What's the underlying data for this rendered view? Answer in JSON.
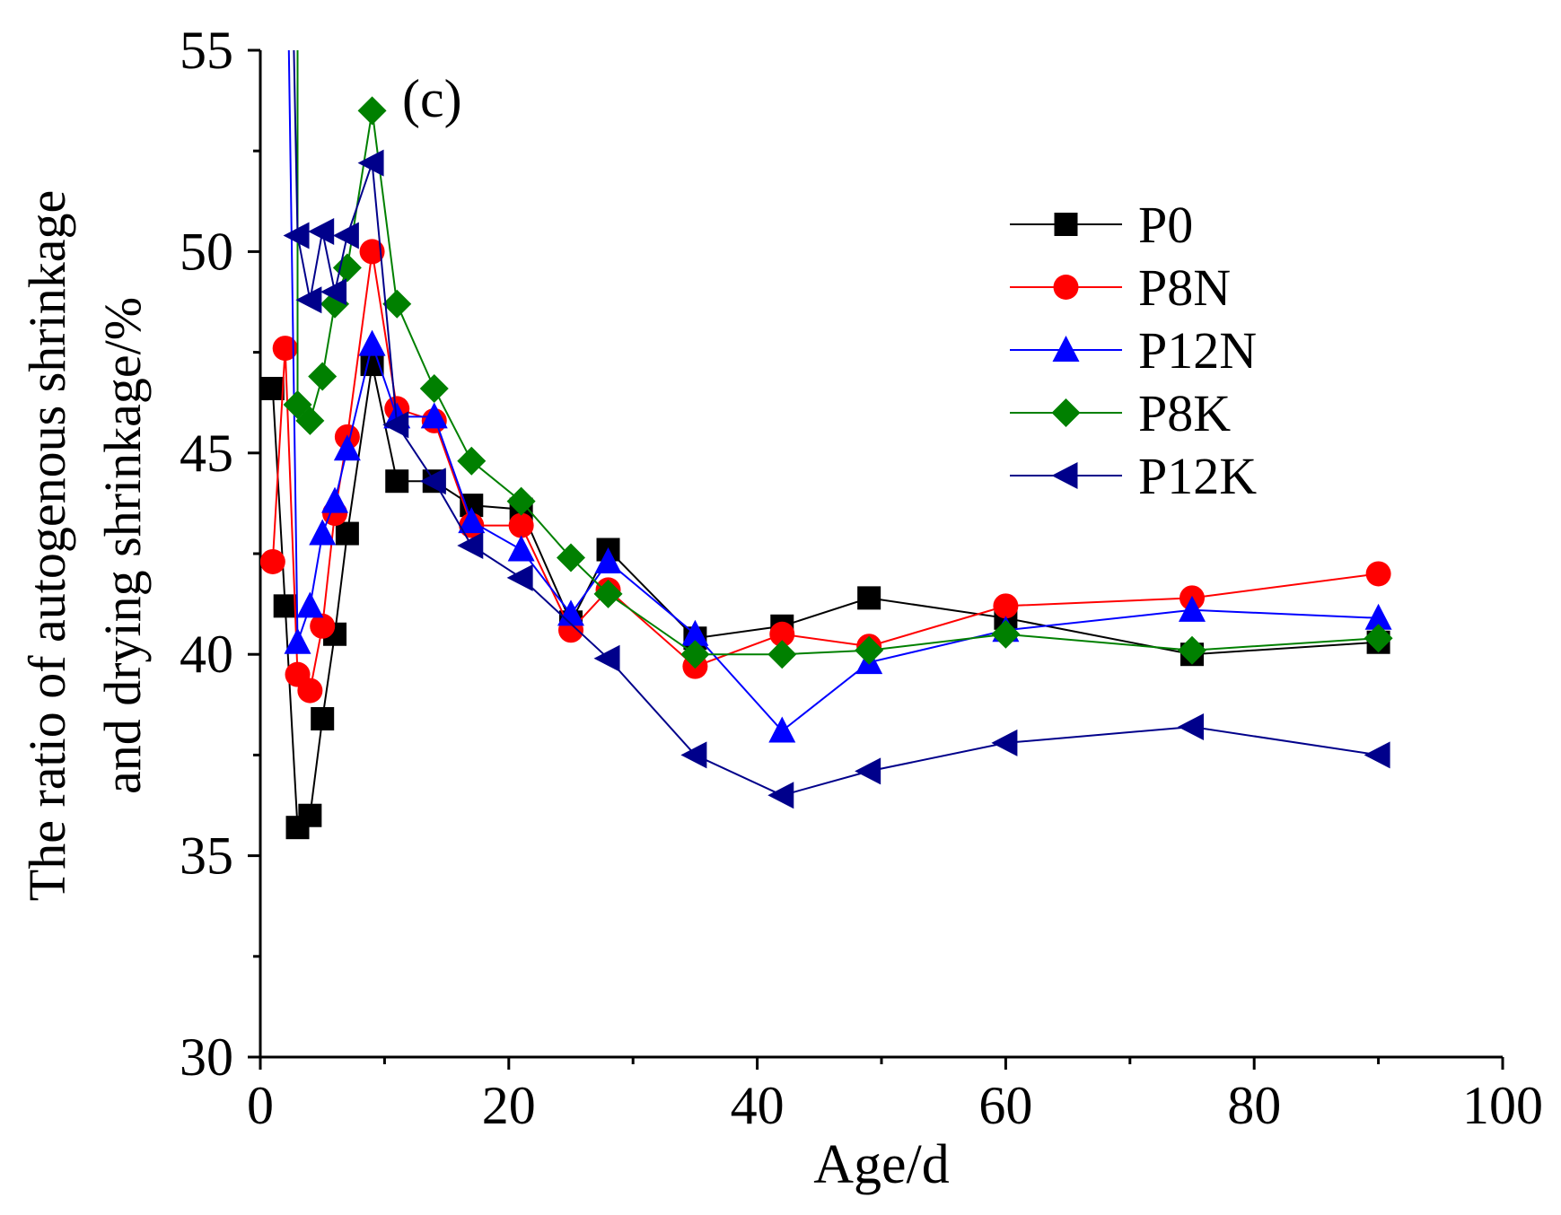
{
  "chart_data": {
    "type": "line",
    "panel_label": "(c)",
    "xlabel": "Age/d",
    "ylabel": [
      "The ratio of autogenous shrinkage",
      "and drying shrinkage/%"
    ],
    "xlim": [
      0,
      100
    ],
    "ylim": [
      30,
      55
    ],
    "x_ticks": [
      0,
      20,
      40,
      60,
      80,
      100
    ],
    "y_ticks": [
      30,
      35,
      40,
      45,
      50,
      55
    ],
    "x_tick_labels": [
      "0",
      "20",
      "40",
      "60",
      "80",
      "100"
    ],
    "y_tick_labels": [
      "30",
      "35",
      "40",
      "45",
      "50",
      "55"
    ],
    "grid": false,
    "legend_position": "top-right",
    "series": [
      {
        "name": "P0",
        "color": "#000000",
        "marker": "square",
        "x": [
          1,
          2,
          3,
          4,
          5,
          6,
          7,
          9,
          11,
          14,
          17,
          21,
          25,
          28,
          35,
          42,
          49,
          60,
          75,
          90
        ],
        "y": [
          46.6,
          41.2,
          35.7,
          36.0,
          38.4,
          40.5,
          43.0,
          47.2,
          44.3,
          44.3,
          43.7,
          43.6,
          40.8,
          42.6,
          40.4,
          40.7,
          41.4,
          40.9,
          40.0,
          40.3
        ]
      },
      {
        "name": "P8N",
        "color": "#ff0000",
        "marker": "circle",
        "x": [
          1,
          2,
          3,
          4,
          5,
          6,
          7,
          9,
          11,
          14,
          17,
          21,
          25,
          28,
          35,
          42,
          49,
          60,
          75,
          90
        ],
        "y": [
          42.3,
          47.6,
          39.5,
          39.1,
          40.7,
          43.5,
          45.4,
          50.0,
          46.1,
          45.8,
          43.2,
          43.2,
          40.6,
          41.6,
          39.7,
          40.5,
          40.2,
          41.2,
          41.4,
          42.0
        ]
      },
      {
        "name": "P12N",
        "color": "#0000ff",
        "marker": "triangle-up",
        "x": [
          2.3,
          3,
          4,
          5,
          6,
          7,
          9,
          11,
          14,
          17,
          21,
          25,
          28,
          35,
          42,
          49,
          60,
          75,
          90
        ],
        "y": [
          55,
          40.3,
          41.2,
          43.0,
          43.8,
          45.1,
          47.7,
          45.9,
          45.9,
          43.3,
          42.6,
          41.0,
          42.3,
          40.5,
          38.1,
          39.8,
          40.6,
          41.1,
          40.9
        ]
      },
      {
        "name": "P8K",
        "color": "#008000",
        "marker": "diamond",
        "x": [
          3,
          3,
          4,
          5,
          6,
          7,
          9,
          11,
          14,
          17,
          21,
          25,
          28,
          35,
          42,
          49,
          60,
          75,
          90
        ],
        "y": [
          55,
          46.2,
          45.8,
          46.9,
          48.7,
          49.6,
          53.5,
          48.7,
          46.6,
          44.8,
          43.8,
          42.4,
          41.5,
          40.0,
          40.0,
          40.1,
          40.5,
          40.1,
          40.4
        ]
      },
      {
        "name": "P12K",
        "color": "#00008b",
        "marker": "triangle-left",
        "x": [
          2.7,
          3,
          4,
          5,
          6,
          7,
          9,
          11,
          14,
          17,
          21,
          28,
          35,
          42,
          49,
          60,
          75,
          90
        ],
        "y": [
          55,
          50.4,
          48.8,
          50.5,
          49.0,
          50.4,
          52.2,
          45.7,
          44.3,
          42.7,
          41.9,
          39.9,
          37.5,
          36.5,
          37.1,
          37.8,
          38.2,
          37.5
        ]
      }
    ]
  }
}
